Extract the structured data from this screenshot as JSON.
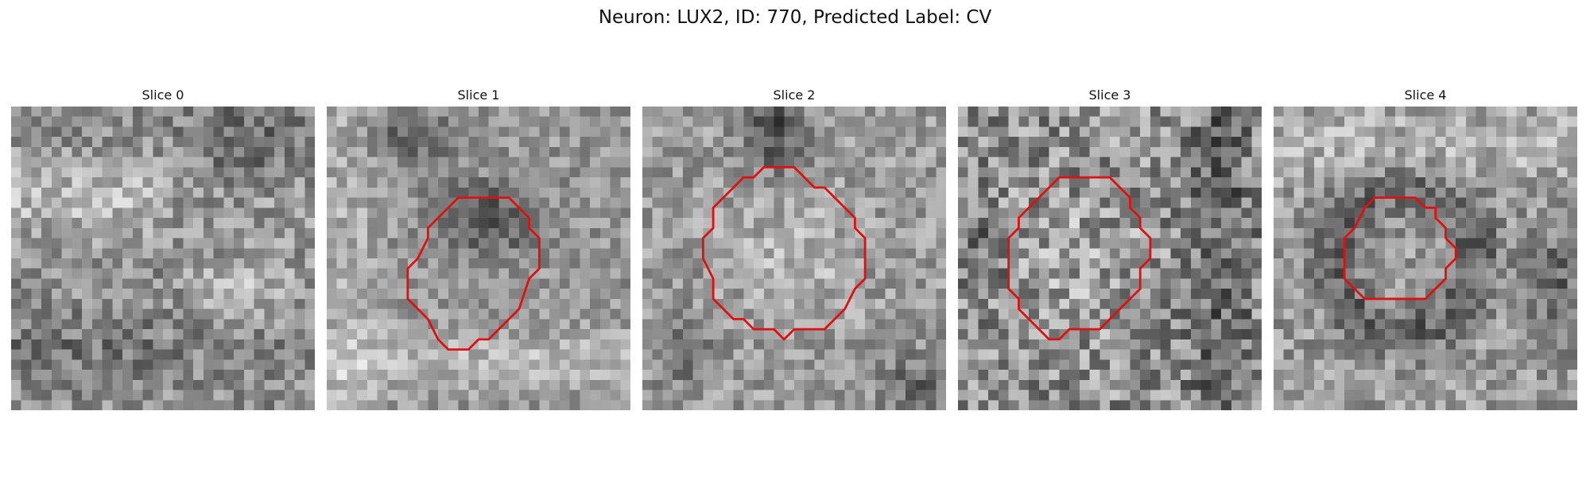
{
  "figure": {
    "title": "Neuron: LUX2, ID: 770, Predicted Label: CV"
  },
  "contour_color": "#e01010",
  "slices": [
    {
      "title": "Slice 0",
      "has_contour": false,
      "contour": []
    },
    {
      "title": "Slice 1",
      "has_contour": true,
      "contour": [
        [
          14,
          9
        ],
        [
          18,
          9
        ],
        [
          19,
          10
        ],
        [
          20,
          11
        ],
        [
          20,
          12
        ],
        [
          21,
          13
        ],
        [
          21,
          16
        ],
        [
          20,
          17
        ],
        [
          19,
          20
        ],
        [
          18,
          21
        ],
        [
          17,
          22
        ],
        [
          16,
          23
        ],
        [
          15,
          23
        ],
        [
          14,
          24
        ],
        [
          12,
          24
        ],
        [
          11,
          23
        ],
        [
          10,
          21
        ],
        [
          9,
          20
        ],
        [
          8,
          19
        ],
        [
          8,
          16
        ],
        [
          9,
          15
        ],
        [
          10,
          13
        ],
        [
          10,
          12
        ],
        [
          11,
          11
        ],
        [
          12,
          10
        ],
        [
          13,
          9
        ]
      ]
    },
    {
      "title": "Slice 2",
      "has_contour": true,
      "contour": [
        [
          12,
          6
        ],
        [
          15,
          6
        ],
        [
          16,
          7
        ],
        [
          17,
          8
        ],
        [
          18,
          8
        ],
        [
          19,
          9
        ],
        [
          20,
          10
        ],
        [
          21,
          11
        ],
        [
          21,
          12
        ],
        [
          22,
          13
        ],
        [
          22,
          17
        ],
        [
          21,
          18
        ],
        [
          20,
          20
        ],
        [
          19,
          21
        ],
        [
          18,
          22
        ],
        [
          16,
          22
        ],
        [
          15,
          22
        ],
        [
          14,
          23
        ],
        [
          13,
          22
        ],
        [
          11,
          22
        ],
        [
          10,
          21
        ],
        [
          9,
          21
        ],
        [
          8,
          20
        ],
        [
          7,
          19
        ],
        [
          7,
          17
        ],
        [
          6,
          15
        ],
        [
          6,
          13
        ],
        [
          7,
          12
        ],
        [
          7,
          10
        ],
        [
          8,
          9
        ],
        [
          9,
          8
        ],
        [
          10,
          7
        ],
        [
          11,
          7
        ]
      ]
    },
    {
      "title": "Slice 3",
      "has_contour": true,
      "contour": [
        [
          10,
          7
        ],
        [
          15,
          7
        ],
        [
          16,
          8
        ],
        [
          17,
          9
        ],
        [
          17,
          10
        ],
        [
          18,
          11
        ],
        [
          18,
          12
        ],
        [
          19,
          13
        ],
        [
          19,
          15
        ],
        [
          18,
          16
        ],
        [
          18,
          18
        ],
        [
          17,
          19
        ],
        [
          16,
          20
        ],
        [
          15,
          21
        ],
        [
          14,
          22
        ],
        [
          11,
          22
        ],
        [
          10,
          23
        ],
        [
          9,
          23
        ],
        [
          8,
          22
        ],
        [
          7,
          21
        ],
        [
          6,
          20
        ],
        [
          6,
          19
        ],
        [
          5,
          18
        ],
        [
          5,
          13
        ],
        [
          6,
          12
        ],
        [
          6,
          11
        ],
        [
          7,
          10
        ],
        [
          8,
          9
        ],
        [
          9,
          8
        ]
      ]
    },
    {
      "title": "Slice 4",
      "has_contour": true,
      "contour": [
        [
          10,
          9
        ],
        [
          14,
          9
        ],
        [
          15,
          10
        ],
        [
          16,
          10
        ],
        [
          16,
          11
        ],
        [
          17,
          12
        ],
        [
          17,
          13
        ],
        [
          18,
          14
        ],
        [
          18,
          15
        ],
        [
          17,
          16
        ],
        [
          17,
          17
        ],
        [
          16,
          18
        ],
        [
          15,
          19
        ],
        [
          13,
          19
        ],
        [
          11,
          19
        ],
        [
          9,
          19
        ],
        [
          8,
          18
        ],
        [
          7,
          17
        ],
        [
          7,
          13
        ],
        [
          8,
          12
        ],
        [
          9,
          10
        ]
      ]
    }
  ]
}
